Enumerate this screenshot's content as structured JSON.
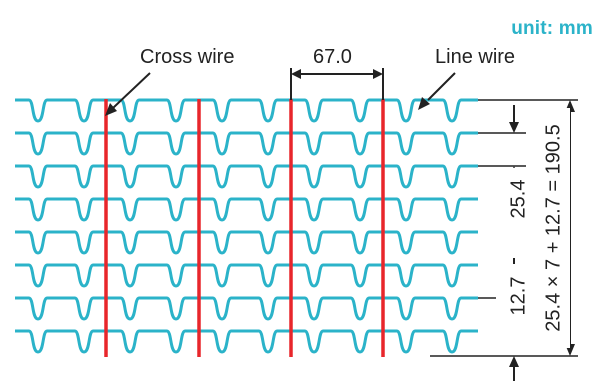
{
  "unit_label": "unit: mm",
  "labels": {
    "cross_wire": "Cross wire",
    "line_wire": "Line wire",
    "cross_spacing": "67.0",
    "line_spacing": "25.4",
    "half_spacing": "12.7",
    "total_height": "25.4 × 7 + 12.7 = 190.5"
  },
  "colors": {
    "line_wire": "#2bb3c9",
    "cross_wire": "#e8262b",
    "dimension": "#222222"
  },
  "wire_counts": {
    "line_wires": 8,
    "cross_wires": 4
  }
}
